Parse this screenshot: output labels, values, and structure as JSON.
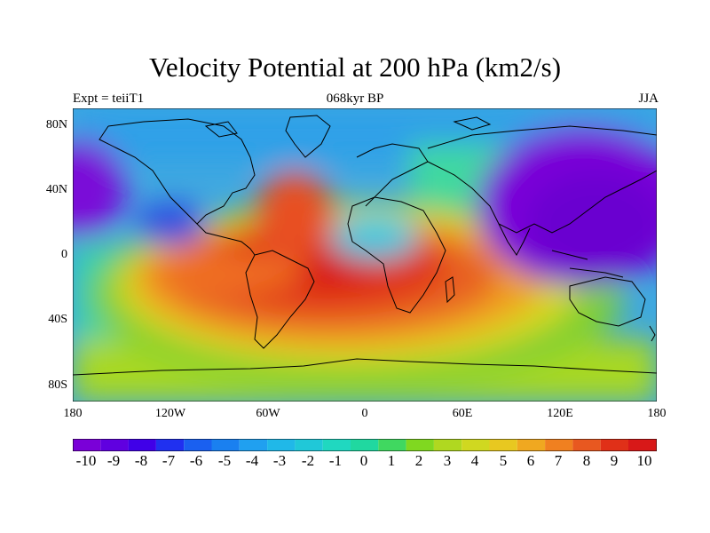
{
  "title": "Velocity Potential at 200 hPa (km2/s)",
  "subtitle_left": "Expt = teiiT1",
  "subtitle_center": "068kyr BP",
  "subtitle_right": "JJA",
  "y_ticks": [
    "80N",
    "40N",
    "0",
    "40S",
    "80S"
  ],
  "x_ticks": [
    "180",
    "120W",
    "60W",
    "0",
    "60E",
    "120E",
    "180"
  ],
  "colorbar_labels": [
    "-10",
    "-9",
    "-8",
    "-7",
    "-6",
    "-5",
    "-4",
    "-3",
    "-2",
    "-1",
    "0",
    "1",
    "2",
    "3",
    "4",
    "5",
    "6",
    "7",
    "8",
    "9",
    "10"
  ],
  "colors": {
    "low": "#7a00d8",
    "mid": "#20c8c8",
    "high": "#d81818"
  }
}
